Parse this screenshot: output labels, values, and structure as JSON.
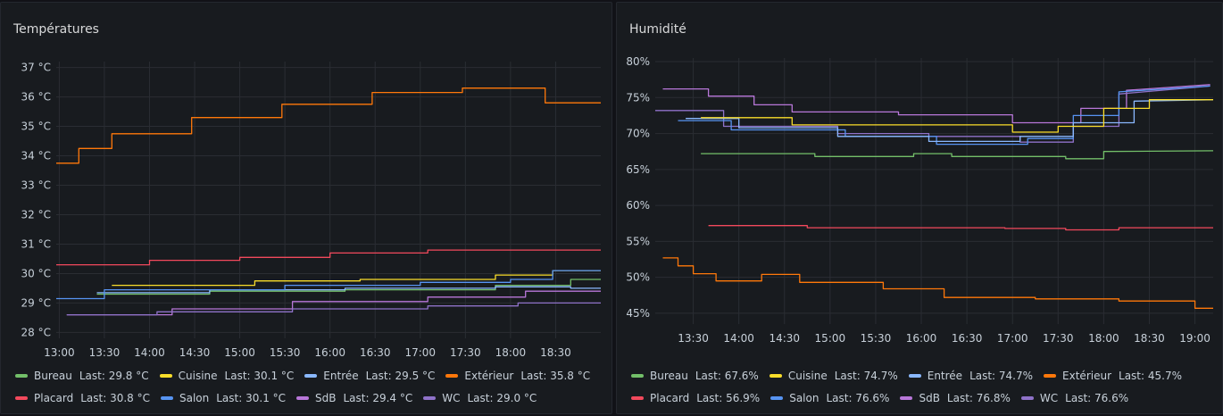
{
  "chart_data": [
    {
      "type": "line",
      "title": "Températures",
      "xlabel": "",
      "ylabel": "",
      "y_unit": " °C",
      "x_ticks": [
        "13:00",
        "13:30",
        "14:00",
        "14:30",
        "15:00",
        "15:30",
        "16:00",
        "16:30",
        "17:00",
        "17:30",
        "18:00",
        "18:30"
      ],
      "x_range": [
        "12:58",
        "19:00"
      ],
      "ylim": [
        27.8,
        37.2
      ],
      "y_ticks": [
        28,
        29,
        30,
        31,
        32,
        33,
        34,
        35,
        36,
        37
      ],
      "step": true,
      "grid": true,
      "legend_placement": "bottom",
      "series": [
        {
          "name": "Extérieur",
          "color": "#ff780a",
          "last_label": "Last: 35.8 °C",
          "x": [
            "12:58",
            "13:13",
            "13:13",
            "13:35",
            "13:35",
            "14:28",
            "14:28",
            "15:28",
            "15:28",
            "16:28",
            "16:28",
            "17:28",
            "17:28",
            "18:23",
            "18:23",
            "19:00"
          ],
          "values": [
            33.75,
            33.75,
            34.25,
            34.25,
            34.75,
            34.75,
            35.3,
            35.3,
            35.75,
            35.75,
            36.15,
            36.15,
            36.3,
            36.3,
            35.8,
            35.8
          ]
        },
        {
          "name": "Placard",
          "color": "#f2495c",
          "last_label": "Last: 30.8 °C",
          "x": [
            "12:58",
            "14:00",
            "14:00",
            "15:00",
            "15:00",
            "16:00",
            "16:00",
            "17:05",
            "17:05",
            "19:00"
          ],
          "values": [
            30.3,
            30.3,
            30.45,
            30.45,
            30.55,
            30.55,
            30.7,
            30.7,
            30.8,
            30.8
          ]
        },
        {
          "name": "Cuisine",
          "color": "#fade2a",
          "last_label": "Last: 30.1 °C",
          "x": [
            "13:35",
            "15:10",
            "15:10",
            "16:20",
            "16:20",
            "17:50",
            "17:50",
            "18:28",
            "18:28",
            "19:00"
          ],
          "values": [
            29.6,
            29.6,
            29.75,
            29.75,
            29.8,
            29.8,
            29.95,
            29.95,
            30.1,
            30.1
          ]
        },
        {
          "name": "Bureau",
          "color": "#73bf69",
          "last_label": "Last: 29.8 °C",
          "x": [
            "13:25",
            "14:40",
            "14:40",
            "16:10",
            "16:10",
            "17:50",
            "17:50",
            "18:40",
            "18:40",
            "19:00"
          ],
          "values": [
            29.3,
            29.3,
            29.4,
            29.4,
            29.45,
            29.45,
            29.6,
            29.6,
            29.8,
            29.8
          ]
        },
        {
          "name": "Entrée",
          "color": "#8ab8ff",
          "last_label": "Last: 29.5 °C",
          "x": [
            "13:25",
            "14:40",
            "14:40",
            "16:10",
            "16:10",
            "17:50",
            "17:50",
            "18:40",
            "18:40",
            "19:00"
          ],
          "values": [
            29.35,
            29.35,
            29.45,
            29.45,
            29.5,
            29.5,
            29.55,
            29.55,
            29.5,
            29.5
          ]
        },
        {
          "name": "Salon",
          "color": "#5794f2",
          "last_label": "Last: 30.1 °C",
          "x": [
            "12:58",
            "13:30",
            "13:30",
            "15:30",
            "15:30",
            "17:00",
            "17:00",
            "18:00",
            "18:00",
            "18:28",
            "18:28",
            "19:00"
          ],
          "values": [
            29.15,
            29.15,
            29.45,
            29.45,
            29.6,
            29.6,
            29.7,
            29.7,
            29.8,
            29.8,
            30.1,
            30.1
          ]
        },
        {
          "name": "SdB",
          "color": "#b877d9",
          "last_label": "Last: 29.4 °C",
          "x": [
            "13:05",
            "14:15",
            "14:15",
            "15:35",
            "15:35",
            "17:05",
            "17:05",
            "18:10",
            "18:10",
            "19:00"
          ],
          "values": [
            28.6,
            28.6,
            28.8,
            28.8,
            29.05,
            29.05,
            29.2,
            29.2,
            29.4,
            29.4
          ]
        },
        {
          "name": "WC",
          "color": "#8f72c9",
          "last_label": "Last: 29.0 °C",
          "x": [
            "13:05",
            "14:05",
            "14:05",
            "15:35",
            "15:35",
            "17:05",
            "17:05",
            "18:05",
            "18:05",
            "19:00"
          ],
          "values": [
            28.6,
            28.6,
            28.7,
            28.7,
            28.8,
            28.8,
            28.9,
            28.9,
            29.0,
            29.0
          ]
        }
      ]
    },
    {
      "type": "line",
      "title": "Humidité",
      "xlabel": "",
      "ylabel": "",
      "y_unit": "%",
      "x_ticks": [
        "13:30",
        "14:00",
        "14:30",
        "15:00",
        "15:30",
        "16:00",
        "16:30",
        "17:00",
        "17:30",
        "18:00",
        "18:30",
        "19:00"
      ],
      "x_range": [
        "13:05",
        "19:12"
      ],
      "ylim": [
        43.5,
        80.5
      ],
      "y_ticks": [
        45,
        50,
        55,
        60,
        65,
        70,
        75,
        80
      ],
      "step": true,
      "grid": true,
      "legend_placement": "bottom",
      "series": [
        {
          "name": "SdB",
          "color": "#b877d9",
          "last_label": "Last: 76.8%",
          "x": [
            "13:10",
            "13:40",
            "13:40",
            "14:10",
            "14:10",
            "14:35",
            "14:35",
            "15:45",
            "15:45",
            "17:00",
            "17:00",
            "17:45",
            "17:45",
            "18:15",
            "18:15",
            "19:10"
          ],
          "values": [
            76.2,
            76.2,
            75.2,
            75.2,
            74.0,
            74.0,
            73.0,
            73.0,
            72.6,
            72.6,
            71.5,
            71.5,
            73.5,
            73.5,
            76.0,
            76.8
          ]
        },
        {
          "name": "WC",
          "color": "#8f72c9",
          "last_label": "Last: 76.6%",
          "x": [
            "13:05",
            "13:50",
            "13:50",
            "15:05",
            "15:05",
            "16:05",
            "16:05",
            "17:05",
            "17:05",
            "17:40",
            "17:40",
            "18:10",
            "18:10",
            "19:10"
          ],
          "values": [
            73.2,
            73.2,
            71.0,
            71.0,
            70.0,
            70.0,
            69.6,
            69.6,
            68.8,
            68.8,
            71.0,
            71.0,
            75.5,
            76.6
          ]
        },
        {
          "name": "Salon",
          "color": "#5794f2",
          "last_label": "Last: 76.6%",
          "x": [
            "13:20",
            "13:55",
            "13:55",
            "15:10",
            "15:10",
            "16:10",
            "16:10",
            "17:10",
            "17:10",
            "17:40",
            "17:40",
            "18:10",
            "18:10",
            "19:10"
          ],
          "values": [
            71.8,
            71.8,
            70.5,
            70.5,
            69.6,
            69.6,
            68.5,
            68.5,
            69.3,
            69.3,
            72.5,
            72.5,
            75.8,
            76.6
          ]
        },
        {
          "name": "Entrée",
          "color": "#8ab8ff",
          "last_label": "Last: 74.7%",
          "x": [
            "13:25",
            "14:00",
            "14:00",
            "15:05",
            "15:05",
            "16:05",
            "16:05",
            "17:05",
            "17:05",
            "17:40",
            "17:40",
            "18:20",
            "18:20",
            "19:12"
          ],
          "values": [
            72.1,
            72.1,
            70.8,
            70.8,
            69.6,
            69.6,
            68.9,
            68.9,
            69.6,
            69.6,
            71.5,
            71.5,
            74.5,
            74.7
          ]
        },
        {
          "name": "Cuisine",
          "color": "#fade2a",
          "last_label": "Last: 74.7%",
          "x": [
            "13:35",
            "14:35",
            "14:35",
            "15:45",
            "15:45",
            "17:00",
            "17:00",
            "17:30",
            "17:30",
            "18:00",
            "18:00",
            "18:30",
            "18:30",
            "19:12"
          ],
          "values": [
            72.2,
            72.2,
            71.2,
            71.2,
            71.2,
            71.2,
            70.2,
            70.2,
            71.0,
            71.0,
            73.5,
            73.5,
            74.7,
            74.7
          ]
        },
        {
          "name": "Bureau",
          "color": "#73bf69",
          "last_label": "Last: 67.6%",
          "x": [
            "13:35",
            "14:50",
            "14:50",
            "15:55",
            "15:55",
            "16:20",
            "16:20",
            "17:35",
            "17:35",
            "18:00",
            "18:00",
            "19:12"
          ],
          "values": [
            67.2,
            67.2,
            66.8,
            66.8,
            67.2,
            67.2,
            66.8,
            66.8,
            66.5,
            66.5,
            67.5,
            67.6
          ]
        },
        {
          "name": "Placard",
          "color": "#f2495c",
          "last_label": "Last: 56.9%",
          "x": [
            "13:40",
            "14:45",
            "14:45",
            "16:55",
            "16:55",
            "17:35",
            "17:35",
            "18:10",
            "18:10",
            "19:12"
          ],
          "values": [
            57.2,
            57.2,
            56.9,
            56.9,
            56.8,
            56.8,
            56.6,
            56.6,
            56.9,
            56.9
          ]
        },
        {
          "name": "Extérieur",
          "color": "#ff780a",
          "last_label": "Last: 45.7%",
          "x": [
            "13:10",
            "13:20",
            "13:20",
            "13:30",
            "13:30",
            "13:45",
            "13:45",
            "14:15",
            "14:15",
            "14:40",
            "14:40",
            "15:35",
            "15:35",
            "16:15",
            "16:15",
            "17:15",
            "17:15",
            "18:10",
            "18:10",
            "19:00",
            "19:00",
            "19:12"
          ],
          "values": [
            52.7,
            52.7,
            51.6,
            51.6,
            50.5,
            50.5,
            49.5,
            49.5,
            50.4,
            50.4,
            49.3,
            49.3,
            48.4,
            48.4,
            47.2,
            47.2,
            47.0,
            47.0,
            46.7,
            46.7,
            45.7,
            45.7
          ]
        }
      ]
    }
  ]
}
